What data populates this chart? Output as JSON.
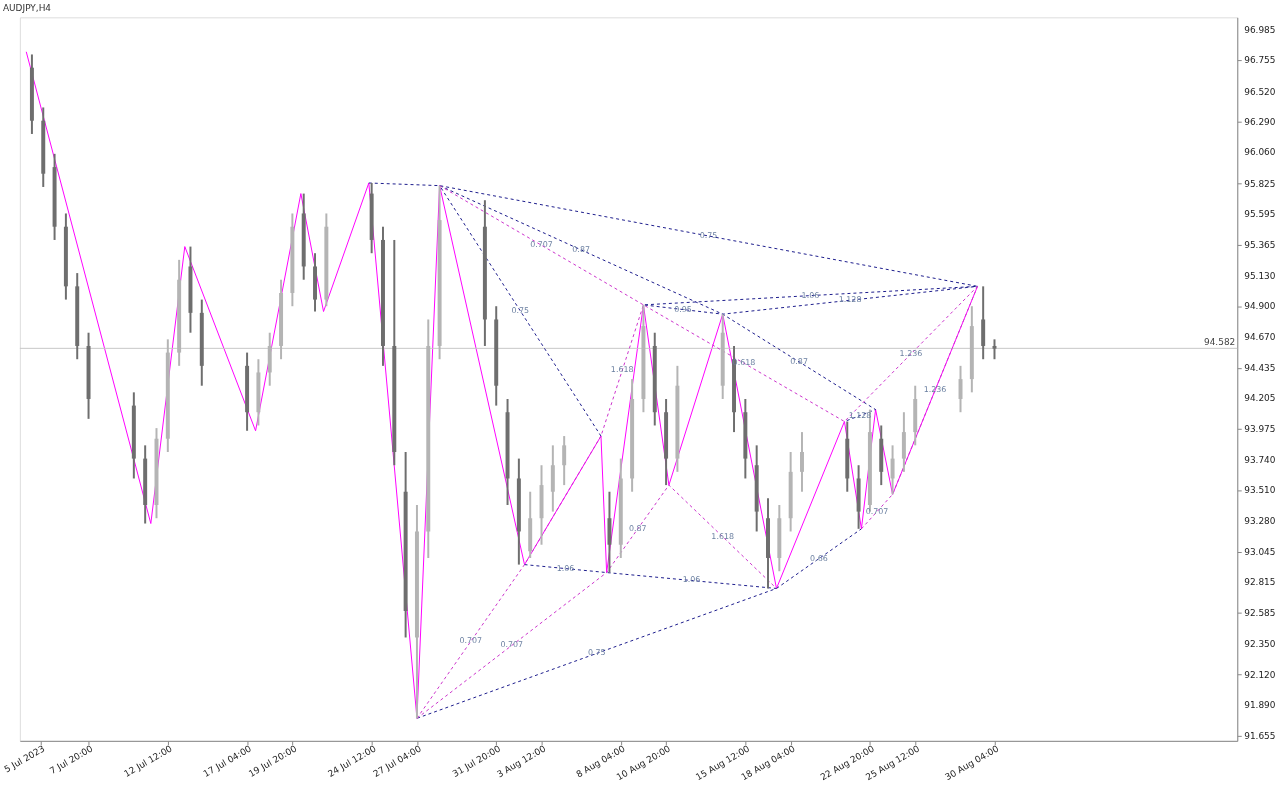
{
  "chart_data": {
    "type": "candlestick",
    "title": "AUDJPY,H4",
    "x": [
      "2023-07-04T12:00",
      "2023-07-05T04:00",
      "2023-07-05T20:00",
      "2023-07-06T12:00",
      "2023-07-07T04:00",
      "2023-07-07T20:00",
      "2023-07-10T12:00",
      "2023-07-11T04:00",
      "2023-07-11T20:00",
      "2023-07-12T12:00",
      "2023-07-13T04:00",
      "2023-07-13T20:00",
      "2023-07-14T12:00",
      "2023-07-17T04:00",
      "2023-07-17T20:00",
      "2023-07-18T12:00",
      "2023-07-19T04:00",
      "2023-07-19T20:00",
      "2023-07-20T12:00",
      "2023-07-21T04:00",
      "2023-07-21T20:00",
      "2023-07-24T12:00",
      "2023-07-25T04:00",
      "2023-07-25T20:00",
      "2023-07-26T12:00",
      "2023-07-27T04:00",
      "2023-07-27T20:00",
      "2023-07-28T12:00",
      "2023-07-31T04:00",
      "2023-07-31T20:00",
      "2023-08-01T12:00",
      "2023-08-02T04:00",
      "2023-08-02T20:00",
      "2023-08-03T12:00",
      "2023-08-04T04:00",
      "2023-08-04T20:00",
      "2023-08-07T12:00",
      "2023-08-08T04:00",
      "2023-08-08T20:00",
      "2023-08-09T12:00",
      "2023-08-10T04:00",
      "2023-08-10T20:00",
      "2023-08-11T12:00",
      "2023-08-14T04:00",
      "2023-08-14T20:00",
      "2023-08-15T12:00",
      "2023-08-16T04:00",
      "2023-08-16T20:00",
      "2023-08-17T12:00",
      "2023-08-18T04:00",
      "2023-08-18T20:00",
      "2023-08-21T12:00",
      "2023-08-22T04:00",
      "2023-08-22T20:00",
      "2023-08-23T12:00",
      "2023-08-24T04:00",
      "2023-08-24T20:00",
      "2023-08-25T12:00",
      "2023-08-28T04:00",
      "2023-08-28T20:00",
      "2023-08-29T12:00",
      "2023-08-30T04:00"
    ],
    "ohlc": [
      [
        96.7,
        96.8,
        96.2,
        96.3
      ],
      [
        96.3,
        96.4,
        95.8,
        95.9
      ],
      [
        95.95,
        96.05,
        95.4,
        95.5
      ],
      [
        95.5,
        95.6,
        94.95,
        95.05
      ],
      [
        95.05,
        95.15,
        94.5,
        94.6
      ],
      [
        94.6,
        94.7,
        94.05,
        94.2
      ],
      [
        94.15,
        94.25,
        93.6,
        93.75
      ],
      [
        93.75,
        93.85,
        93.26,
        93.4
      ],
      [
        93.4,
        93.98,
        93.3,
        93.9
      ],
      [
        93.9,
        94.65,
        93.8,
        94.55
      ],
      [
        94.55,
        95.25,
        94.45,
        95.1
      ],
      [
        95.2,
        95.35,
        94.7,
        94.85
      ],
      [
        94.85,
        94.95,
        94.3,
        94.45
      ],
      [
        94.45,
        94.55,
        93.96,
        94.1
      ],
      [
        94.1,
        94.5,
        94.0,
        94.4
      ],
      [
        94.4,
        94.7,
        94.3,
        94.6
      ],
      [
        94.6,
        95.1,
        94.5,
        95.0
      ],
      [
        95.0,
        95.6,
        94.9,
        95.5
      ],
      [
        95.6,
        95.75,
        95.1,
        95.2
      ],
      [
        95.2,
        95.3,
        94.86,
        94.95
      ],
      [
        94.95,
        95.6,
        94.9,
        95.5
      ],
      [
        95.75,
        95.83,
        95.3,
        95.4
      ],
      [
        95.4,
        95.5,
        94.45,
        94.6
      ],
      [
        94.6,
        95.4,
        93.7,
        93.8
      ],
      [
        93.5,
        93.8,
        92.4,
        92.6
      ],
      [
        92.4,
        93.4,
        91.79,
        93.2
      ],
      [
        93.2,
        94.8,
        93.0,
        94.6
      ],
      [
        94.6,
        95.81,
        94.5,
        95.55
      ],
      [
        95.5,
        95.7,
        94.6,
        94.8
      ],
      [
        94.8,
        94.9,
        94.15,
        94.3
      ],
      [
        94.1,
        94.2,
        93.4,
        93.6
      ],
      [
        93.6,
        93.75,
        92.95,
        93.2
      ],
      [
        93.05,
        93.5,
        93.0,
        93.3
      ],
      [
        93.3,
        93.7,
        93.1,
        93.55
      ],
      [
        93.5,
        93.85,
        93.35,
        93.7
      ],
      [
        93.7,
        93.92,
        93.55,
        93.85
      ],
      [
        93.3,
        93.5,
        92.89,
        93.1
      ],
      [
        93.1,
        93.75,
        93.0,
        93.6
      ],
      [
        93.6,
        94.35,
        93.5,
        94.2
      ],
      [
        94.2,
        94.91,
        94.1,
        94.75
      ],
      [
        94.6,
        94.7,
        94.0,
        94.1
      ],
      [
        94.1,
        94.2,
        93.55,
        93.75
      ],
      [
        93.75,
        94.45,
        93.65,
        94.3
      ],
      [
        94.3,
        94.84,
        94.2,
        94.7
      ],
      [
        94.5,
        94.6,
        93.95,
        94.1
      ],
      [
        94.1,
        94.2,
        93.6,
        93.75
      ],
      [
        93.7,
        93.85,
        93.2,
        93.35
      ],
      [
        93.3,
        93.45,
        92.77,
        93.0
      ],
      [
        93.0,
        93.4,
        92.9,
        93.3
      ],
      [
        93.3,
        93.8,
        93.2,
        93.65
      ],
      [
        93.65,
        93.95,
        93.5,
        93.8
      ],
      [
        93.9,
        94.03,
        93.5,
        93.6
      ],
      [
        93.6,
        93.7,
        93.22,
        93.35
      ],
      [
        93.4,
        94.12,
        93.35,
        93.95
      ],
      [
        93.9,
        94.0,
        93.55,
        93.65
      ],
      [
        93.6,
        93.85,
        93.48,
        93.75
      ],
      [
        93.75,
        94.1,
        93.65,
        93.95
      ],
      [
        93.95,
        94.3,
        93.85,
        94.2
      ],
      [
        94.2,
        94.45,
        94.1,
        94.35
      ],
      [
        94.35,
        94.9,
        94.25,
        94.75
      ],
      [
        94.8,
        95.05,
        94.5,
        94.6
      ],
      [
        94.6,
        94.65,
        94.5,
        94.58
      ]
    ],
    "colors": [
      "#6e6e6e",
      "#6e6e6e",
      "#6e6e6e",
      "#6e6e6e",
      "#6e6e6e",
      "#6e6e6e",
      "#6e6e6e",
      "#6e6e6e",
      "#b4b4b4",
      "#b4b4b4",
      "#b4b4b4",
      "#6e6e6e",
      "#6e6e6e",
      "#6e6e6e",
      "#b4b4b4",
      "#b4b4b4",
      "#b4b4b4",
      "#b4b4b4",
      "#6e6e6e",
      "#6e6e6e",
      "#b4b4b4",
      "#6e6e6e",
      "#6e6e6e",
      "#6e6e6e",
      "#6e6e6e",
      "#b4b4b4",
      "#b4b4b4",
      "#b4b4b4",
      "#6e6e6e",
      "#6e6e6e",
      "#6e6e6e",
      "#6e6e6e",
      "#b4b4b4",
      "#b4b4b4",
      "#b4b4b4",
      "#b4b4b4",
      "#6e6e6e",
      "#b4b4b4",
      "#b4b4b4",
      "#b4b4b4",
      "#6e6e6e",
      "#6e6e6e",
      "#b4b4b4",
      "#b4b4b4",
      "#6e6e6e",
      "#6e6e6e",
      "#6e6e6e",
      "#6e6e6e",
      "#b4b4b4",
      "#b4b4b4",
      "#b4b4b4",
      "#6e6e6e",
      "#6e6e6e",
      "#b4b4b4",
      "#6e6e6e",
      "#b4b4b4",
      "#b4b4b4",
      "#b4b4b4",
      "#b4b4b4",
      "#b4b4b4",
      "#6e6e6e",
      "#6e6e6e"
    ],
    "series": [
      {
        "type": "line",
        "color": "#ff00ff",
        "line_style": "solid",
        "x": [
          "2023-07-04T04:00",
          "2023-07-11T12:00",
          "2023-07-13T12:00",
          "2023-07-17T16:00",
          "2023-07-20T08:00",
          "2023-07-21T16:00",
          "2023-07-24T08:00",
          "2023-07-27T04:00",
          "2023-07-28T12:00",
          "2023-08-02T12:00",
          "2023-08-07T00:00",
          "2023-08-07T08:00",
          "2023-08-09T12:00",
          "2023-08-11T00:00",
          "2023-08-14T04:00",
          "2023-08-17T08:00",
          "2023-08-21T08:00",
          "2023-08-22T08:00",
          "2023-08-23T04:00",
          "2023-08-24T04:00",
          "2023-08-29T04:00"
        ],
        "values": [
          96.82,
          93.26,
          95.35,
          93.96,
          95.75,
          94.86,
          95.83,
          91.79,
          95.81,
          92.95,
          93.92,
          92.89,
          94.91,
          93.55,
          94.84,
          92.77,
          94.03,
          93.22,
          94.12,
          93.48,
          95.05
        ]
      },
      {
        "type": "line",
        "color": "#1c1c8c",
        "line_style": "dashed",
        "x": [
          "2023-07-24T08:00",
          "2023-07-28T12:00",
          "2023-08-29T04:00",
          "2023-08-09T12:00",
          "2023-08-14T04:00",
          "2023-08-29T04:00"
        ],
        "values": [
          95.83,
          95.81,
          95.05,
          94.91,
          94.84,
          95.05
        ]
      },
      {
        "type": "line",
        "color": "#1c1c8c",
        "line_style": "dashed",
        "x": [
          "2023-08-07T00:00",
          "2023-07-28T12:00",
          "2023-08-14T04:00",
          "2023-08-23T04:00",
          "2023-08-21T08:00"
        ],
        "values": [
          93.92,
          95.81,
          94.84,
          94.12,
          94.03
        ]
      },
      {
        "type": "line",
        "color": "#1c1c8c",
        "line_style": "dashed",
        "x": [
          "2023-08-02T12:00",
          "2023-08-07T08:00",
          "2023-08-17T08:00",
          "2023-07-27T04:00"
        ],
        "values": [
          92.95,
          92.89,
          92.77,
          91.79
        ]
      },
      {
        "type": "line",
        "color": "#1c1c8c",
        "line_style": "dashed",
        "x": [
          "2023-08-17T08:00",
          "2023-08-22T08:00"
        ],
        "values": [
          92.77,
          93.22
        ]
      },
      {
        "type": "line",
        "color": "#cc33cc",
        "line_style": "dashed",
        "x": [
          "2023-07-27T04:00",
          "2023-08-02T12:00",
          "2023-08-07T00:00",
          "2023-08-09T12:00",
          "2023-08-21T08:00",
          "2023-08-29T04:00"
        ],
        "values": [
          91.79,
          92.95,
          93.92,
          94.91,
          94.03,
          95.05
        ]
      },
      {
        "type": "line",
        "color": "#cc33cc",
        "line_style": "dashed",
        "x": [
          "2023-07-27T04:00",
          "2023-08-07T08:00",
          "2023-08-11T00:00",
          "2023-08-17T08:00"
        ],
        "values": [
          91.79,
          92.89,
          93.55,
          92.77
        ]
      },
      {
        "type": "line",
        "color": "#cc33cc",
        "line_style": "dashed",
        "x": [
          "2023-07-28T12:00",
          "2023-08-09T12:00"
        ],
        "values": [
          95.81,
          94.91
        ]
      },
      {
        "type": "line",
        "color": "#cc33cc",
        "line_style": "dashed",
        "x": [
          "2023-08-22T08:00",
          "2023-08-24T04:00",
          "2023-08-29T04:00"
        ],
        "values": [
          93.22,
          93.48,
          95.05
        ]
      }
    ],
    "annotations": [
      {
        "text": "0.75",
        "x": "2023-08-13T08:00",
        "y": 95.43
      },
      {
        "text": "0.707",
        "x": "2023-08-03T12:00",
        "y": 95.36
      },
      {
        "text": "0.87",
        "x": "2023-08-05T20:00",
        "y": 95.325
      },
      {
        "text": "0.75",
        "x": "2023-08-02T06:00",
        "y": 94.865
      },
      {
        "text": "1.06",
        "x": "2023-08-19T08:00",
        "y": 94.98
      },
      {
        "text": "1.128",
        "x": "2023-08-21T16:00",
        "y": 94.945
      },
      {
        "text": "0.95",
        "x": "2023-08-11T20:00",
        "y": 94.875
      },
      {
        "text": "1.618",
        "x": "2023-08-08T06:00",
        "y": 94.415
      },
      {
        "text": "0.618",
        "x": "2023-08-15T10:00",
        "y": 94.47
      },
      {
        "text": "0.87",
        "x": "2023-08-18T16:00",
        "y": 94.48
      },
      {
        "text": "1.236",
        "x": "2023-08-25T06:00",
        "y": 94.54
      },
      {
        "text": "1.236",
        "x": "2023-08-26T16:00",
        "y": 94.265
      },
      {
        "text": "1.128",
        "x": "2023-08-22T06:00",
        "y": 94.075
      },
      {
        "text": "0.87",
        "x": "2023-08-09T04:00",
        "y": 93.22
      },
      {
        "text": "1.618",
        "x": "2023-08-14T04:00",
        "y": 93.16
      },
      {
        "text": "0.707",
        "x": "2023-08-23T06:00",
        "y": 93.35
      },
      {
        "text": "0.66",
        "x": "2023-08-19T20:00",
        "y": 92.995
      },
      {
        "text": "1.06",
        "x": "2023-08-04T22:00",
        "y": 92.92
      },
      {
        "text": "1.06",
        "x": "2023-08-12T08:00",
        "y": 92.83
      },
      {
        "text": "0.707",
        "x": "2023-07-30T08:00",
        "y": 92.37
      },
      {
        "text": "0.707",
        "x": "2023-08-01T18:00",
        "y": 92.34
      },
      {
        "text": "0.75",
        "x": "2023-08-06T18:00",
        "y": 92.28
      }
    ],
    "ref_lines": [
      {
        "axis": "y",
        "value": 94.582,
        "label": "94.582",
        "color": "#c8c8c8"
      }
    ],
    "xlim": [
      "2023-07-04T02:00",
      "2023-09-13T04:00"
    ],
    "xticks": [
      {
        "value": "2023-07-05T00:00",
        "label": "5 Jul 2023"
      },
      {
        "value": "2023-07-07T20:00",
        "label": "7 Jul 20:00"
      },
      {
        "value": "2023-07-12T12:00",
        "label": "12 Jul 12:00"
      },
      {
        "value": "2023-07-17T04:00",
        "label": "17 Jul 04:00"
      },
      {
        "value": "2023-07-19T20:00",
        "label": "19 Jul 20:00"
      },
      {
        "value": "2023-07-24T12:00",
        "label": "24 Jul 12:00"
      },
      {
        "value": "2023-07-27T04:00",
        "label": "27 Jul 04:00"
      },
      {
        "value": "2023-07-31T20:00",
        "label": "31 Jul 20:00"
      },
      {
        "value": "2023-08-03T12:00",
        "label": "3 Aug 12:00"
      },
      {
        "value": "2023-08-08T04:00",
        "label": "8 Aug 04:00"
      },
      {
        "value": "2023-08-10T20:00",
        "label": "10 Aug 20:00"
      },
      {
        "value": "2023-08-15T12:00",
        "label": "15 Aug 12:00"
      },
      {
        "value": "2023-08-18T04:00",
        "label": "18 Aug 04:00"
      },
      {
        "value": "2023-08-22T20:00",
        "label": "22 Aug 20:00"
      },
      {
        "value": "2023-08-25T12:00",
        "label": "25 Aug 12:00"
      },
      {
        "value": "2023-08-30T04:00",
        "label": "30 Aug 04:00"
      }
    ],
    "ylim": [
      91.62,
      97.08
    ],
    "yticks": [
      {
        "value": 91.655,
        "label": "91.655"
      },
      {
        "value": 91.89,
        "label": "91.890"
      },
      {
        "value": 92.12,
        "label": "92.120"
      },
      {
        "value": 92.35,
        "label": "92.350"
      },
      {
        "value": 92.585,
        "label": "92.585"
      },
      {
        "value": 92.815,
        "label": "92.815"
      },
      {
        "value": 93.045,
        "label": "93.045"
      },
      {
        "value": 93.28,
        "label": "93.280"
      },
      {
        "value": 93.51,
        "label": "93.510"
      },
      {
        "value": 93.74,
        "label": "93.740"
      },
      {
        "value": 93.975,
        "label": "93.975"
      },
      {
        "value": 94.205,
        "label": "94.205"
      },
      {
        "value": 94.435,
        "label": "94.435"
      },
      {
        "value": 94.67,
        "label": "94.670"
      },
      {
        "value": 94.9,
        "label": "94.900"
      },
      {
        "value": 95.13,
        "label": "95.130"
      },
      {
        "value": 95.365,
        "label": "95.365"
      },
      {
        "value": 95.595,
        "label": "95.595"
      },
      {
        "value": 95.825,
        "label": "95.825"
      },
      {
        "value": 96.06,
        "label": "96.060"
      },
      {
        "value": 96.29,
        "label": "96.290"
      },
      {
        "value": 96.52,
        "label": "96.520"
      },
      {
        "value": 96.755,
        "label": "96.755"
      },
      {
        "value": 96.985,
        "label": "96.985"
      }
    ],
    "grid": false
  }
}
